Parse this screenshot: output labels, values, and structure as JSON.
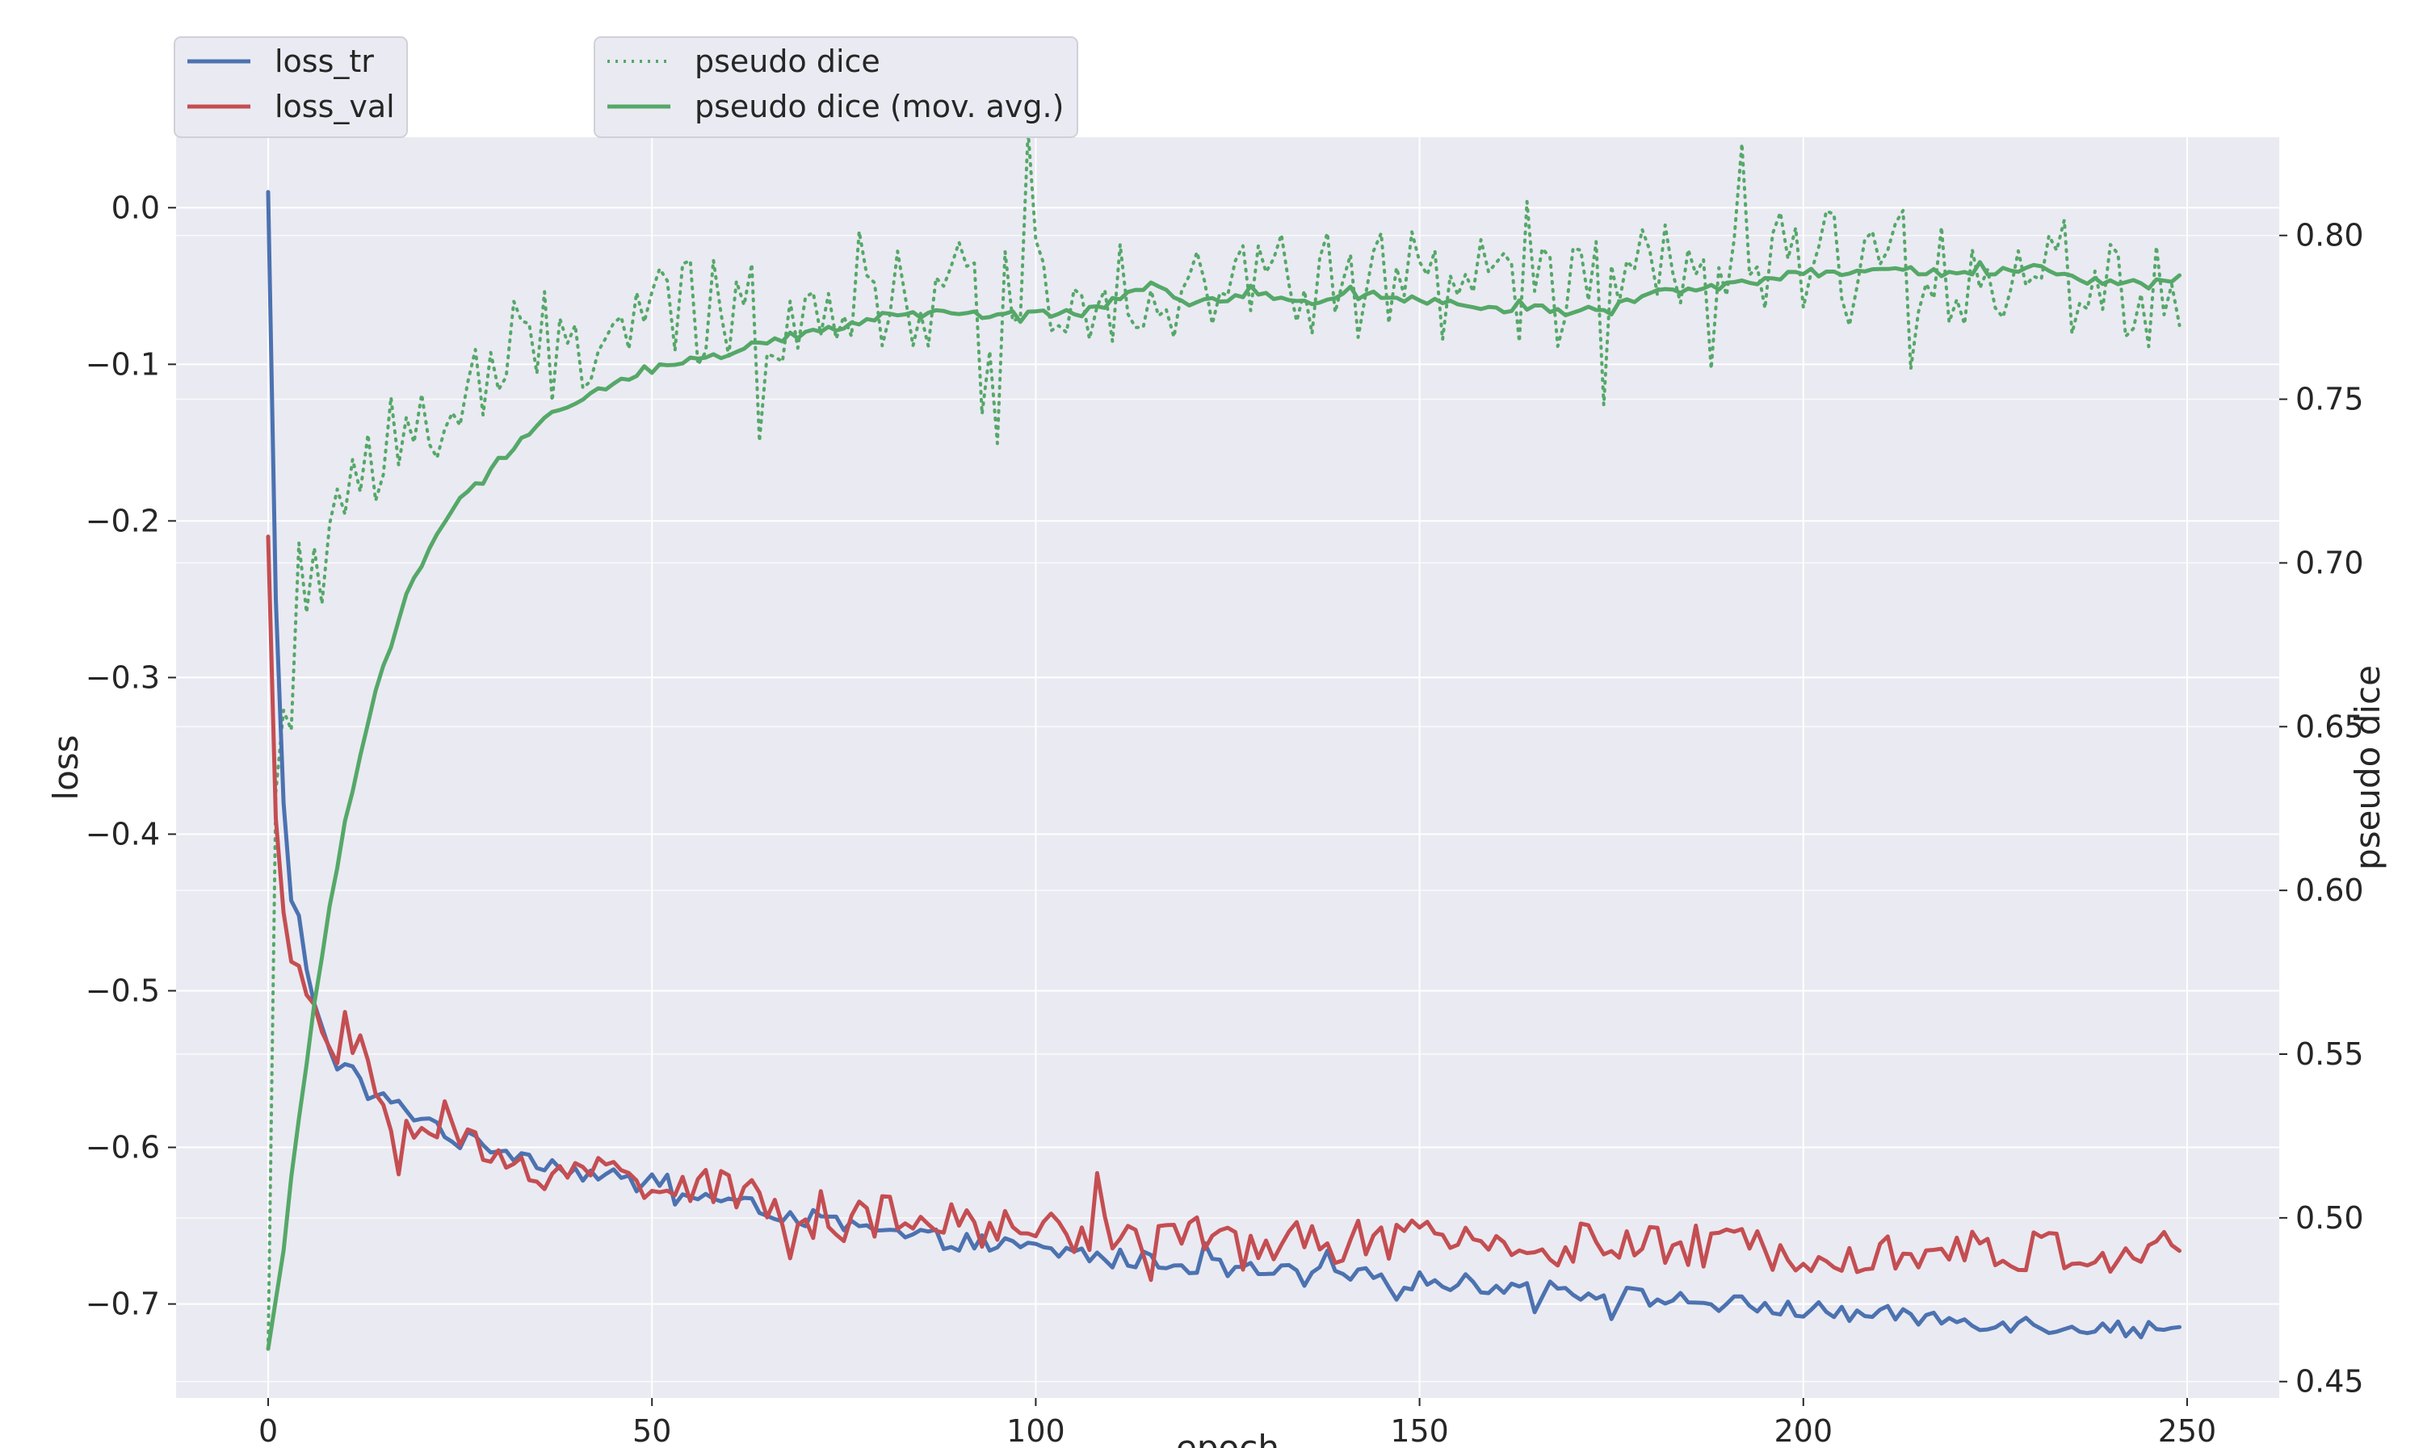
{
  "chart_data": {
    "type": "line",
    "title": "",
    "xlabel": "epoch",
    "ylabel": "loss",
    "y2label": "pseudo dice",
    "xlim": [
      -12,
      262
    ],
    "ylim": [
      -0.76,
      0.045
    ],
    "y2lim": [
      0.445,
      0.83
    ],
    "x_ticks": [
      0,
      50,
      100,
      150,
      200,
      250
    ],
    "y_ticks": [
      0.0,
      -0.1,
      -0.2,
      -0.3,
      -0.4,
      -0.5,
      -0.6,
      -0.7
    ],
    "y_tick_labels": [
      "0.0",
      "−0.1",
      "−0.2",
      "−0.3",
      "−0.4",
      "−0.5",
      "−0.6",
      "−0.7"
    ],
    "y2_ticks": [
      0.45,
      0.5,
      0.55,
      0.6,
      0.65,
      0.7,
      0.75,
      0.8
    ],
    "y2_tick_labels": [
      "0.45",
      "0.50",
      "0.55",
      "0.60",
      "0.65",
      "0.70",
      "0.75",
      "0.80"
    ],
    "grid": true,
    "background": "#eaeaf2",
    "legend_left": {
      "placement": "top-left",
      "entries": [
        {
          "label": "loss_tr",
          "color": "#4c72b0",
          "style": "solid"
        },
        {
          "label": "loss_val",
          "color": "#c44e52",
          "style": "solid"
        }
      ]
    },
    "legend_right": {
      "placement": "top-center",
      "entries": [
        {
          "label": "pseudo dice",
          "color": "#55a868",
          "style": "dotted"
        },
        {
          "label": "pseudo dice (mov. avg.)",
          "color": "#55a868",
          "style": "solid"
        }
      ]
    },
    "epochs": 250,
    "series": [
      {
        "name": "loss_tr",
        "axis": "left",
        "color": "#4c72b0",
        "style": "solid",
        "keypoints": [
          [
            0,
            0.01
          ],
          [
            1,
            -0.25
          ],
          [
            2,
            -0.38
          ],
          [
            3,
            -0.445
          ],
          [
            4,
            -0.455
          ],
          [
            5,
            -0.49
          ],
          [
            6,
            -0.505
          ],
          [
            7,
            -0.52
          ],
          [
            8,
            -0.54
          ],
          [
            9,
            -0.545
          ],
          [
            10,
            -0.55
          ],
          [
            12,
            -0.56
          ],
          [
            15,
            -0.57
          ],
          [
            20,
            -0.58
          ],
          [
            25,
            -0.595
          ],
          [
            30,
            -0.6
          ],
          [
            40,
            -0.615
          ],
          [
            50,
            -0.625
          ],
          [
            60,
            -0.635
          ],
          [
            70,
            -0.645
          ],
          [
            80,
            -0.655
          ],
          [
            90,
            -0.66
          ],
          [
            100,
            -0.665
          ],
          [
            110,
            -0.67
          ],
          [
            120,
            -0.675
          ],
          [
            130,
            -0.68
          ],
          [
            140,
            -0.682
          ],
          [
            150,
            -0.685
          ],
          [
            160,
            -0.688
          ],
          [
            170,
            -0.692
          ],
          [
            180,
            -0.696
          ],
          [
            190,
            -0.7
          ],
          [
            200,
            -0.704
          ],
          [
            210,
            -0.707
          ],
          [
            220,
            -0.71
          ],
          [
            230,
            -0.713
          ],
          [
            240,
            -0.715
          ],
          [
            249,
            -0.718
          ]
        ],
        "noise": 0.006
      },
      {
        "name": "loss_val",
        "axis": "left",
        "color": "#c44e52",
        "style": "solid",
        "keypoints": [
          [
            0,
            -0.21
          ],
          [
            1,
            -0.39
          ],
          [
            2,
            -0.45
          ],
          [
            3,
            -0.47
          ],
          [
            4,
            -0.49
          ],
          [
            5,
            -0.515
          ],
          [
            6,
            -0.505
          ],
          [
            7,
            -0.52
          ],
          [
            8,
            -0.55
          ],
          [
            10,
            -0.54
          ],
          [
            12,
            -0.53
          ],
          [
            15,
            -0.575
          ],
          [
            20,
            -0.59
          ],
          [
            25,
            -0.595
          ],
          [
            30,
            -0.61
          ],
          [
            40,
            -0.615
          ],
          [
            50,
            -0.62
          ],
          [
            60,
            -0.63
          ],
          [
            70,
            -0.64
          ],
          [
            80,
            -0.645
          ],
          [
            90,
            -0.65
          ],
          [
            100,
            -0.652
          ],
          [
            110,
            -0.655
          ],
          [
            120,
            -0.657
          ],
          [
            130,
            -0.66
          ],
          [
            140,
            -0.66
          ],
          [
            150,
            -0.66
          ],
          [
            160,
            -0.66
          ],
          [
            170,
            -0.662
          ],
          [
            180,
            -0.663
          ],
          [
            190,
            -0.664
          ],
          [
            200,
            -0.665
          ],
          [
            210,
            -0.666
          ],
          [
            220,
            -0.666
          ],
          [
            230,
            -0.667
          ],
          [
            240,
            -0.667
          ],
          [
            249,
            -0.665
          ]
        ],
        "noise": 0.014
      },
      {
        "name": "pseudo dice",
        "axis": "right",
        "color": "#55a868",
        "style": "dotted",
        "keypoints": [
          [
            0,
            0.46
          ],
          [
            1,
            0.63
          ],
          [
            2,
            0.655
          ],
          [
            3,
            0.65
          ],
          [
            4,
            0.7
          ],
          [
            5,
            0.7
          ],
          [
            6,
            0.705
          ],
          [
            7,
            0.695
          ],
          [
            8,
            0.72
          ],
          [
            10,
            0.7
          ],
          [
            12,
            0.73
          ],
          [
            15,
            0.735
          ],
          [
            18,
            0.74
          ],
          [
            20,
            0.74
          ],
          [
            25,
            0.745
          ],
          [
            30,
            0.76
          ],
          [
            35,
            0.765
          ],
          [
            40,
            0.765
          ],
          [
            45,
            0.77
          ],
          [
            50,
            0.775
          ],
          [
            60,
            0.775
          ],
          [
            70,
            0.78
          ],
          [
            80,
            0.785
          ],
          [
            90,
            0.78
          ],
          [
            100,
            0.785
          ],
          [
            110,
            0.785
          ],
          [
            120,
            0.785
          ],
          [
            130,
            0.785
          ],
          [
            140,
            0.785
          ],
          [
            150,
            0.785
          ],
          [
            160,
            0.782
          ],
          [
            170,
            0.782
          ],
          [
            180,
            0.785
          ],
          [
            190,
            0.788
          ],
          [
            200,
            0.79
          ],
          [
            210,
            0.79
          ],
          [
            220,
            0.79
          ],
          [
            230,
            0.79
          ],
          [
            240,
            0.785
          ],
          [
            249,
            0.785
          ]
        ],
        "noise": 0.018
      },
      {
        "name": "pseudo dice (mov. avg.)",
        "axis": "right",
        "color": "#55a868",
        "style": "solid",
        "keypoints": [
          [
            0,
            0.46
          ],
          [
            2,
            0.49
          ],
          [
            4,
            0.53
          ],
          [
            6,
            0.565
          ],
          [
            8,
            0.595
          ],
          [
            10,
            0.62
          ],
          [
            12,
            0.64
          ],
          [
            14,
            0.66
          ],
          [
            16,
            0.675
          ],
          [
            18,
            0.69
          ],
          [
            20,
            0.7
          ],
          [
            22,
            0.71
          ],
          [
            25,
            0.72
          ],
          [
            28,
            0.725
          ],
          [
            30,
            0.73
          ],
          [
            35,
            0.742
          ],
          [
            40,
            0.748
          ],
          [
            45,
            0.755
          ],
          [
            50,
            0.76
          ],
          [
            55,
            0.762
          ],
          [
            60,
            0.764
          ],
          [
            65,
            0.768
          ],
          [
            70,
            0.77
          ],
          [
            75,
            0.772
          ],
          [
            80,
            0.776
          ],
          [
            90,
            0.776
          ],
          [
            95,
            0.775
          ],
          [
            100,
            0.777
          ],
          [
            105,
            0.775
          ],
          [
            110,
            0.78
          ],
          [
            115,
            0.785
          ],
          [
            120,
            0.779
          ],
          [
            125,
            0.781
          ],
          [
            130,
            0.782
          ],
          [
            135,
            0.78
          ],
          [
            140,
            0.781
          ],
          [
            145,
            0.782
          ],
          [
            150,
            0.78
          ],
          [
            155,
            0.779
          ],
          [
            160,
            0.777
          ],
          [
            165,
            0.778
          ],
          [
            170,
            0.776
          ],
          [
            175,
            0.779
          ],
          [
            180,
            0.782
          ],
          [
            185,
            0.784
          ],
          [
            190,
            0.785
          ],
          [
            195,
            0.786
          ],
          [
            200,
            0.789
          ],
          [
            205,
            0.788
          ],
          [
            210,
            0.79
          ],
          [
            215,
            0.789
          ],
          [
            220,
            0.788
          ],
          [
            225,
            0.789
          ],
          [
            230,
            0.79
          ],
          [
            235,
            0.787
          ],
          [
            240,
            0.786
          ],
          [
            245,
            0.785
          ],
          [
            249,
            0.787
          ]
        ],
        "noise": 0.0012
      }
    ]
  }
}
